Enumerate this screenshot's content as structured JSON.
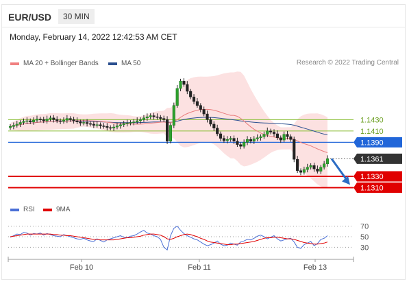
{
  "header": {
    "symbol": "EUR/USD",
    "timeframe": "30 MIN"
  },
  "datetime": "Monday, February 14, 2022 12:42:53 AM CET",
  "legend": {
    "ma20_label": "MA 20 + Bollinger Bands",
    "ma20_color": "#f08080",
    "ma50_label": "MA 50",
    "ma50_color": "#2a4f8f",
    "research": "Research © 2022 Trading Central"
  },
  "rsi_legend": {
    "rsi_label": "RSI",
    "rsi_color": "#4a6fd6",
    "ma9_label": "9MA",
    "ma9_color": "#e00000"
  },
  "chart_data": [
    {
      "type": "candlestick",
      "x_ticks": [
        "Feb 10",
        "Feb 11",
        "Feb 13"
      ],
      "ylim": [
        1.129,
        1.152
      ],
      "closes": [
        1.1418,
        1.142,
        1.1422,
        1.1425,
        1.1427,
        1.1428,
        1.1426,
        1.1429,
        1.1431,
        1.143,
        1.1428,
        1.1431,
        1.1433,
        1.143,
        1.1428,
        1.1427,
        1.1429,
        1.1432,
        1.143,
        1.1428,
        1.1426,
        1.1424,
        1.1425,
        1.1423,
        1.1422,
        1.142,
        1.1421,
        1.1419,
        1.1418,
        1.1416,
        1.1415,
        1.1417,
        1.1419,
        1.1421,
        1.1423,
        1.1424,
        1.1425,
        1.1426,
        1.1428,
        1.143,
        1.1433,
        1.1435,
        1.1437,
        1.1435,
        1.1434,
        1.1432,
        1.143,
        1.1392,
        1.142,
        1.1455,
        1.1485,
        1.1498,
        1.1492,
        1.148,
        1.147,
        1.1462,
        1.1455,
        1.1448,
        1.144,
        1.143,
        1.1422,
        1.1415,
        1.1405,
        1.1397,
        1.1393,
        1.1395,
        1.1397,
        1.1392,
        1.1386,
        1.1383,
        1.139,
        1.1395,
        1.1392,
        1.1396,
        1.1398,
        1.14,
        1.1404,
        1.141,
        1.1408,
        1.1405,
        1.1398,
        1.1394,
        1.1404,
        1.14,
        1.1395,
        1.136,
        1.134,
        1.1337,
        1.1342,
        1.1346,
        1.1349,
        1.1343,
        1.1339,
        1.1346,
        1.1352,
        1.1361
      ],
      "horizontal_levels": [
        {
          "value": 1.143,
          "label": "1.1430",
          "color": "#8dbf3a",
          "style": "line"
        },
        {
          "value": 1.141,
          "label": "1.1410",
          "color": "#8dbf3a",
          "style": "line"
        },
        {
          "value": 1.139,
          "label": "1.1390",
          "color": "#2166d9",
          "style": "badge"
        },
        {
          "value": 1.1361,
          "label": "1.1361",
          "color": "#333333",
          "style": "current"
        },
        {
          "value": 1.133,
          "label": "1.1330",
          "color": "#e00000",
          "style": "badge"
        },
        {
          "value": 1.131,
          "label": "1.1310",
          "color": "#e00000",
          "style": "badge"
        }
      ],
      "forecast_arrow": {
        "from": 1.1361,
        "to": 1.1315,
        "color": "#2b6cc4"
      }
    },
    {
      "type": "line",
      "title": "RSI",
      "ylim": [
        15,
        85
      ],
      "y_ticks": [
        "70",
        "50",
        "30"
      ],
      "series": [
        {
          "name": "RSI",
          "values": [
            49,
            52,
            55,
            54,
            58,
            57,
            53,
            56,
            55,
            57,
            53,
            56,
            54,
            52,
            51,
            50,
            54,
            52,
            50,
            48,
            46,
            45,
            47,
            44,
            42,
            41,
            46,
            43,
            40,
            44,
            46,
            48,
            50,
            52,
            49,
            48,
            51,
            52,
            55,
            59,
            62,
            57,
            55,
            52,
            50,
            45,
            30,
            25,
            52,
            66,
            70,
            62,
            56,
            52,
            49,
            46,
            44,
            40,
            36,
            33,
            35,
            38,
            42,
            36,
            33,
            34,
            38,
            36,
            34,
            40,
            42,
            45,
            44,
            47,
            51,
            53,
            50,
            46,
            49,
            52,
            46,
            42,
            44,
            46,
            47,
            40,
            30,
            28,
            35,
            38,
            41,
            33,
            37,
            45,
            47,
            52
          ]
        },
        {
          "name": "9MA",
          "values": [
            50,
            51,
            52,
            53,
            54,
            55,
            55,
            55,
            55,
            55,
            55,
            55,
            55,
            54,
            54,
            53,
            53,
            52,
            52,
            51,
            50,
            49,
            48,
            47,
            46,
            45,
            45,
            44,
            44,
            44,
            44,
            44,
            45,
            46,
            47,
            48,
            48,
            49,
            50,
            51,
            53,
            54,
            55,
            55,
            54,
            53,
            50,
            46,
            45,
            47,
            50,
            52,
            54,
            55,
            54,
            52,
            50,
            47,
            45,
            42,
            40,
            39,
            38,
            37,
            36,
            35,
            35,
            36,
            36,
            37,
            38,
            39,
            40,
            41,
            43,
            45,
            47,
            48,
            48,
            49,
            49,
            48,
            47,
            46,
            46,
            45,
            43,
            41,
            39,
            38,
            37,
            36,
            36,
            37,
            38,
            40
          ]
        }
      ]
    }
  ]
}
